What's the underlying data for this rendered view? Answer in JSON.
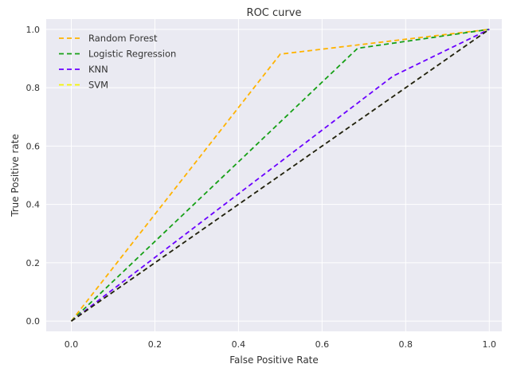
{
  "chart_data": {
    "type": "line",
    "title": "ROC curve",
    "xlabel": "False Positive Rate",
    "ylabel": "True Positive rate",
    "xlim": [
      -0.06,
      1.03
    ],
    "ylim": [
      -0.035,
      1.035
    ],
    "x_ticks": [
      0.0,
      0.2,
      0.4,
      0.6,
      0.8,
      1.0
    ],
    "x_tick_labels": [
      "0.0",
      "0.2",
      "0.4",
      "0.6",
      "0.8",
      "1.0"
    ],
    "y_ticks": [
      0.0,
      0.2,
      0.4,
      0.6,
      0.8,
      1.0
    ],
    "y_tick_labels": [
      "0.0",
      "0.2",
      "0.4",
      "0.6",
      "0.8",
      "1.0"
    ],
    "grid": true,
    "legend_position": "top-left",
    "background": "#eaeaf2",
    "series": [
      {
        "name": "Random Forest",
        "color": "#ffb300",
        "dash": "dashed",
        "x": [
          0.0,
          0.5,
          1.0
        ],
        "y": [
          0.0,
          0.915,
          1.0
        ]
      },
      {
        "name": "Logistic Regression",
        "color": "#16a016",
        "dash": "dashed",
        "x": [
          0.0,
          0.685,
          1.0
        ],
        "y": [
          0.0,
          0.935,
          1.0
        ]
      },
      {
        "name": "KNN",
        "color": "#6a00ff",
        "dash": "dashed",
        "x": [
          0.0,
          0.77,
          1.0
        ],
        "y": [
          0.0,
          0.84,
          1.0
        ]
      },
      {
        "name": "SVM",
        "color": "#f5f500",
        "dash": "dashed",
        "x": [
          0.0,
          1.0
        ],
        "y": [
          0.0,
          1.0
        ]
      }
    ],
    "reference_line": {
      "color": "#1c1c1c",
      "dash": "dashed",
      "x": [
        0.0,
        1.0
      ],
      "y": [
        0.0,
        1.0
      ]
    }
  }
}
